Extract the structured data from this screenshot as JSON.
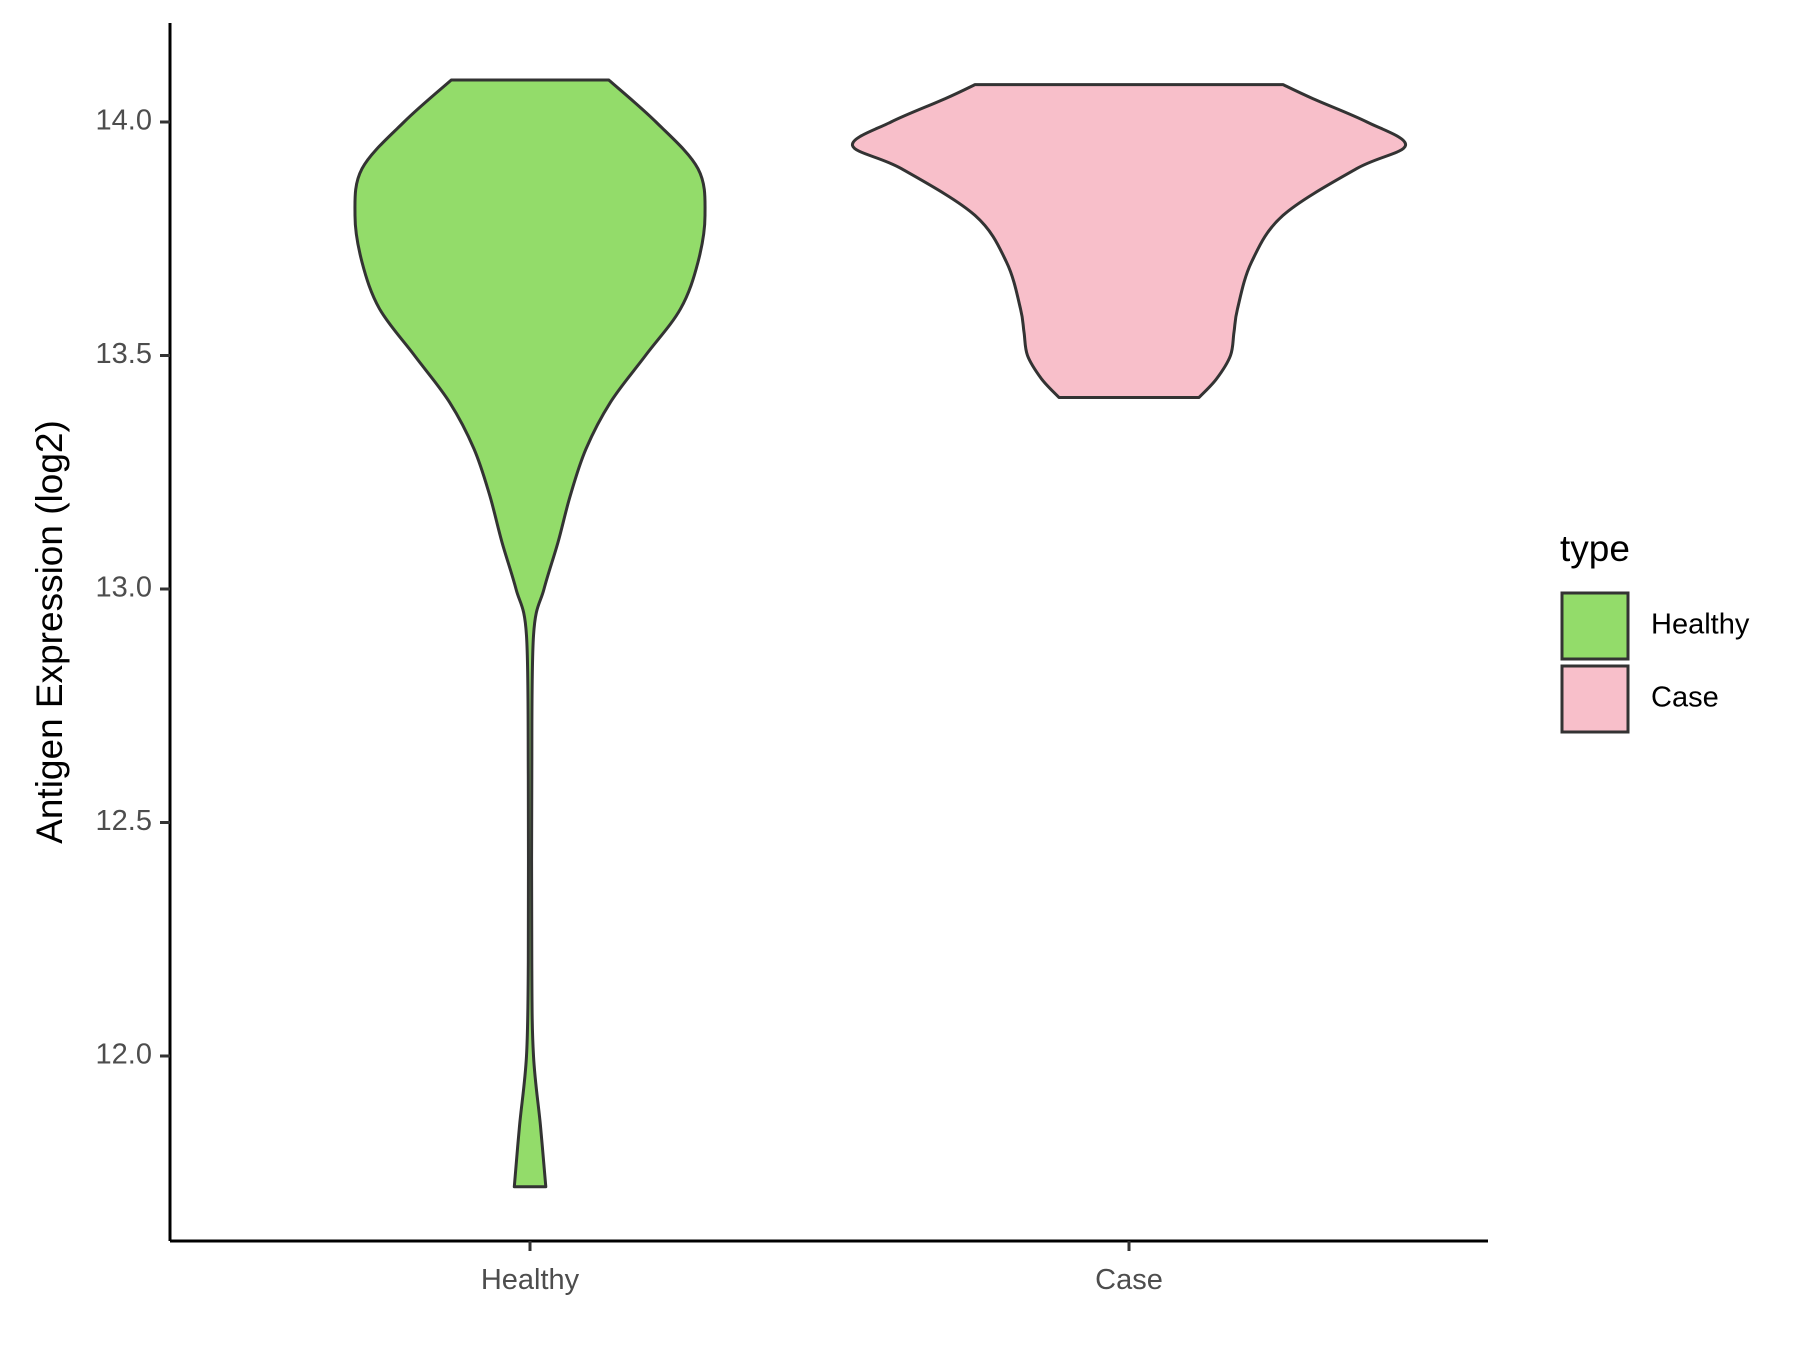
{
  "chart_data": {
    "type": "violin",
    "title": "",
    "xlabel": "",
    "ylabel": "Antigen Expression (log2)",
    "ylim": [
      11.6,
      14.2
    ],
    "yticks": [
      12.0,
      12.5,
      13.0,
      13.5,
      14.0
    ],
    "ytick_labels": [
      "12.0",
      "12.5",
      "13.0",
      "13.5",
      "14.0"
    ],
    "categories": [
      "Healthy",
      "Case"
    ],
    "grid": false,
    "legend": {
      "title": "type",
      "placement": "right",
      "entries": [
        {
          "label": "Healthy",
          "color": "#93dc6a"
        },
        {
          "label": "Case",
          "color": "#f8bfca"
        }
      ]
    },
    "outline_color": "#333333",
    "series": [
      {
        "category": "Healthy",
        "color": "#93dc6a",
        "min": 11.72,
        "max": 14.09,
        "profile": [
          [
            11.72,
            0.09
          ],
          [
            11.85,
            0.06
          ],
          [
            12.0,
            0.02
          ],
          [
            12.2,
            0.01
          ],
          [
            12.6,
            0.01
          ],
          [
            12.9,
            0.02
          ],
          [
            13.0,
            0.08
          ],
          [
            13.1,
            0.16
          ],
          [
            13.2,
            0.23
          ],
          [
            13.3,
            0.32
          ],
          [
            13.4,
            0.46
          ],
          [
            13.5,
            0.66
          ],
          [
            13.6,
            0.86
          ],
          [
            13.7,
            0.96
          ],
          [
            13.8,
            1.0
          ],
          [
            13.9,
            0.96
          ],
          [
            14.0,
            0.72
          ],
          [
            14.09,
            0.45
          ]
        ]
      },
      {
        "category": "Case",
        "color": "#f8bfca",
        "min": 13.41,
        "max": 14.08,
        "profile": [
          [
            13.41,
            0.4
          ],
          [
            13.45,
            0.5
          ],
          [
            13.5,
            0.58
          ],
          [
            13.55,
            0.6
          ],
          [
            13.6,
            0.62
          ],
          [
            13.7,
            0.7
          ],
          [
            13.8,
            0.88
          ],
          [
            13.9,
            1.3
          ],
          [
            13.95,
            1.58
          ],
          [
            14.0,
            1.36
          ],
          [
            14.05,
            1.05
          ],
          [
            14.08,
            0.88
          ]
        ]
      }
    ]
  }
}
